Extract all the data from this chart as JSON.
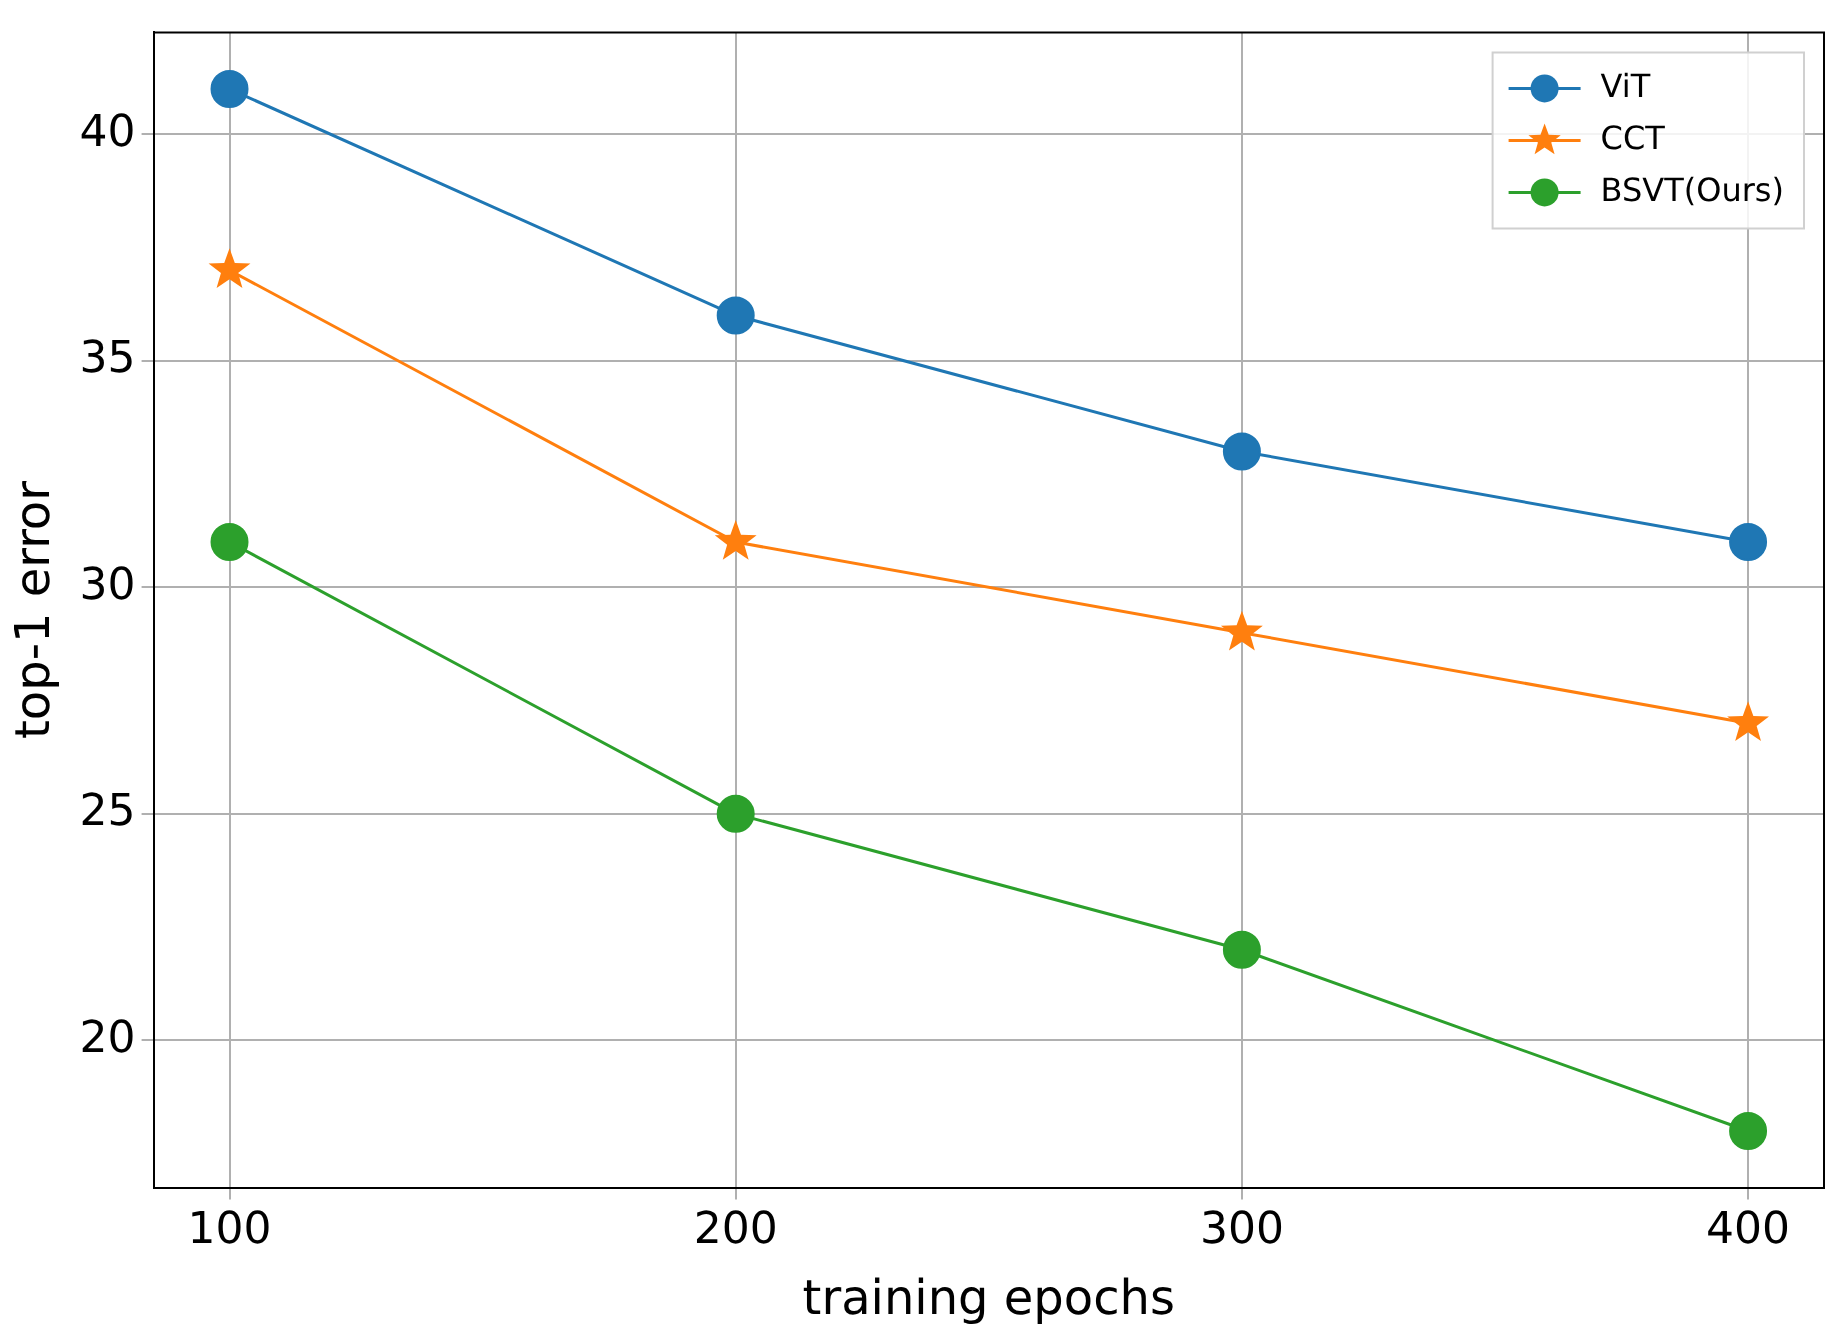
{
  "chart_data": {
    "type": "line",
    "xlabel": "training epochs",
    "ylabel": "top-1 error",
    "x": [
      100,
      200,
      300,
      400
    ],
    "xlim": [
      85,
      415
    ],
    "xticks": [
      100,
      200,
      300,
      400
    ],
    "ylim": [
      16.75,
      42.25
    ],
    "yticks": [
      20,
      25,
      30,
      35,
      40
    ],
    "grid": true,
    "legend": "top right",
    "line_style": "solid",
    "series": [
      {
        "name": "ViT",
        "color": "#1f77b4",
        "marker": "circle",
        "values": [
          41,
          36,
          33,
          31
        ]
      },
      {
        "name": "CCT",
        "color": "#ff7f0e",
        "marker": "star",
        "values": [
          37,
          31,
          29,
          27
        ]
      },
      {
        "name": "BSVT(Ours)",
        "color": "#2ca02c",
        "marker": "circle",
        "values": [
          31,
          25,
          22,
          18
        ]
      }
    ]
  }
}
